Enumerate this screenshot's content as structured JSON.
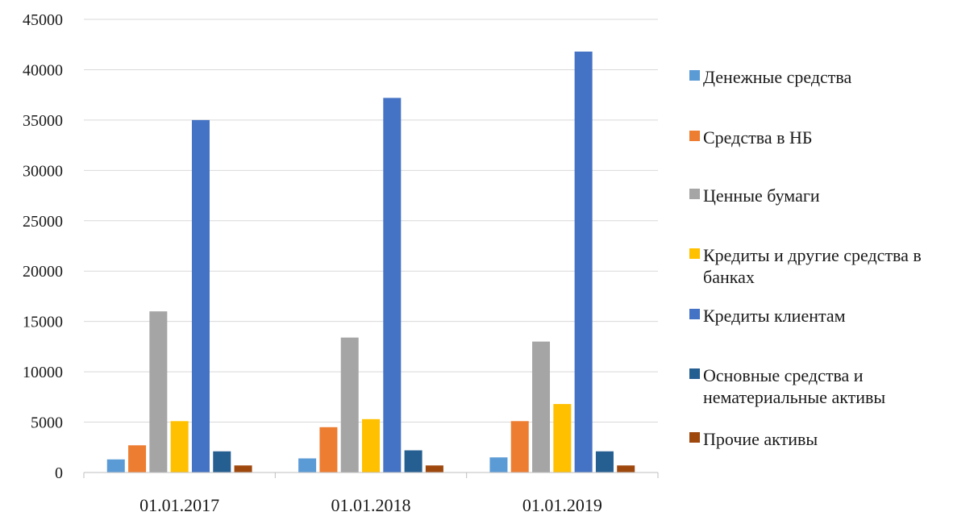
{
  "chart_data": {
    "type": "bar",
    "categories": [
      "01.01.2017",
      "01.01.2018",
      "01.01.2019"
    ],
    "series": [
      {
        "name": "Денежные средства",
        "color": "#5b9bd5",
        "values": [
          1300,
          1400,
          1500
        ]
      },
      {
        "name": "Средства в НБ",
        "color": "#ed7d31",
        "values": [
          2700,
          4500,
          5100
        ]
      },
      {
        "name": "Ценные бумаги",
        "color": "#a5a5a5",
        "values": [
          16000,
          13400,
          13000
        ]
      },
      {
        "name": "Кредиты и другие средства в банках",
        "color": "#ffc000",
        "values": [
          5100,
          5300,
          6800
        ]
      },
      {
        "name": "Кредиты клиентам",
        "color": "#4472c4",
        "values": [
          35000,
          37200,
          41800
        ]
      },
      {
        "name": "Основные средства и нематериальные активы",
        "color": "#255e91",
        "values": [
          2100,
          2200,
          2100
        ]
      },
      {
        "name": "Прочие активы",
        "color": "#9e480e",
        "values": [
          700,
          700,
          700
        ]
      }
    ],
    "ylim": [
      0,
      45000
    ],
    "yticks": [
      0,
      5000,
      10000,
      15000,
      20000,
      25000,
      30000,
      35000,
      40000,
      45000
    ],
    "grid": true,
    "legend_position": "right"
  }
}
